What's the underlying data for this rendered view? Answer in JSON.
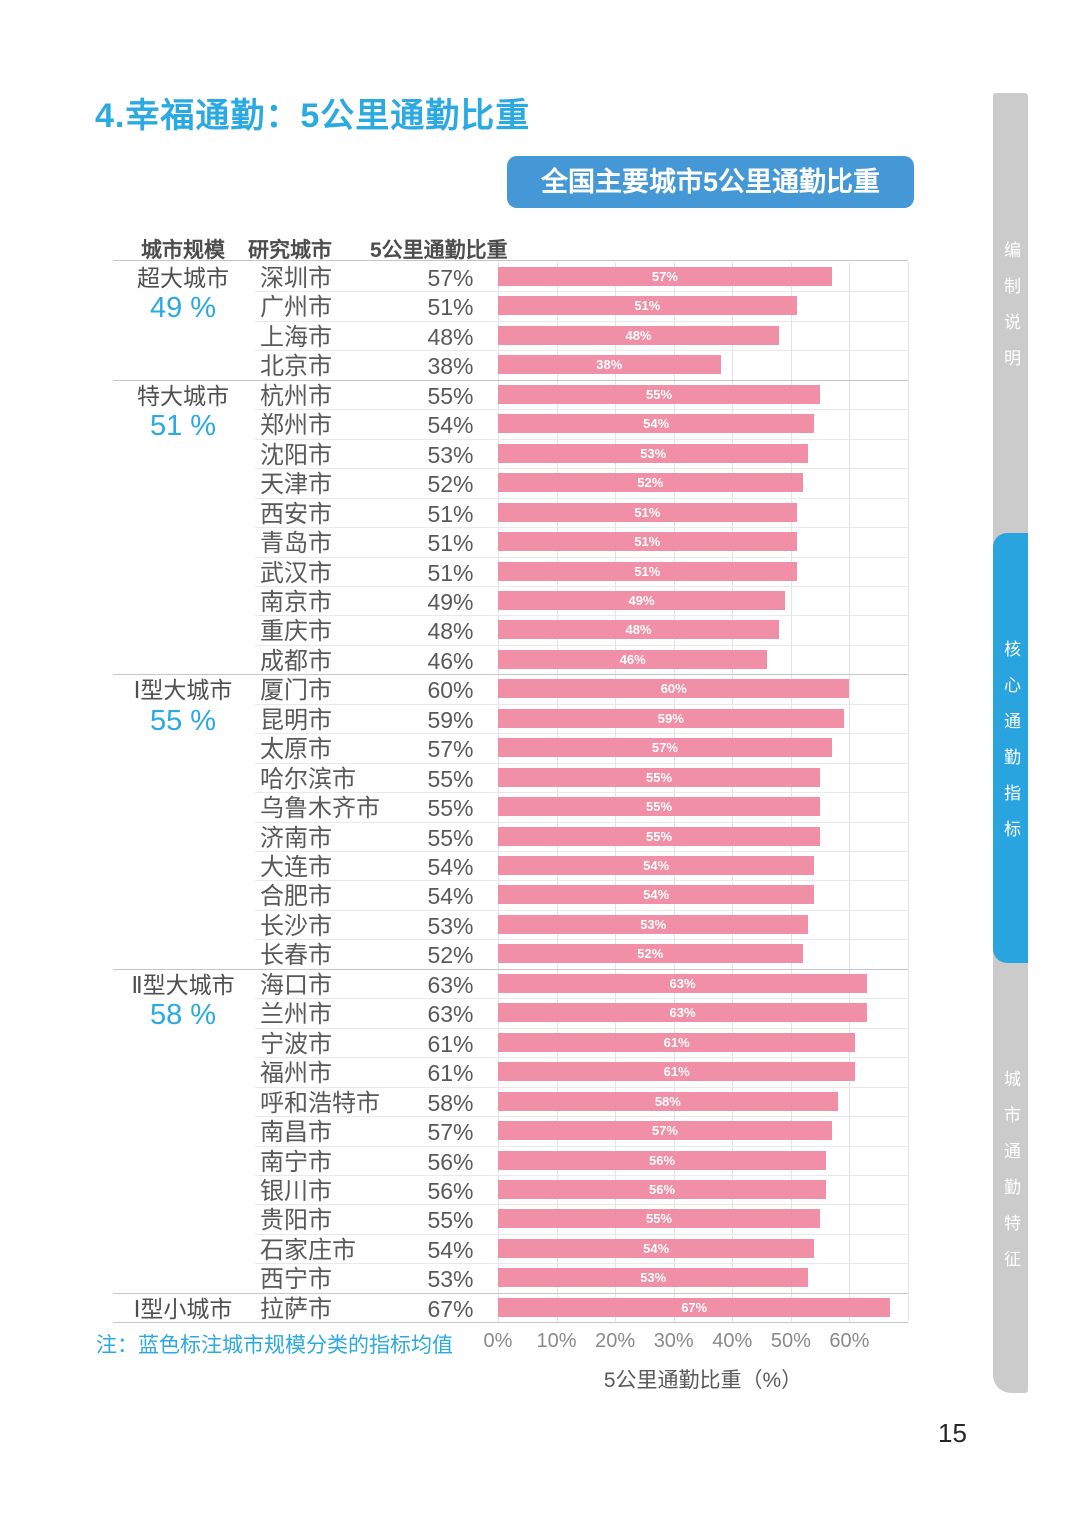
{
  "page": {
    "title": "4.幸福通勤：5公里通勤比重",
    "banner": "全国主要城市5公里通勤比重",
    "note": "注：蓝色标注城市规模分类的指标均值",
    "page_number": "15",
    "columns": [
      "城市规模",
      "研究城市",
      "5公里通勤比重"
    ]
  },
  "sidebar": {
    "items": [
      {
        "label": "编制说明",
        "active": false
      },
      {
        "label": "核心通勤指标",
        "active": true
      },
      {
        "label": "城市通勤特征",
        "active": false
      }
    ]
  },
  "colors": {
    "accent_blue": "#2BA9E1",
    "banner_blue": "#4498D5",
    "bar_pink": "#F08FA6",
    "rail_gray": "#CBCBCB",
    "rail_blue": "#29A4DF"
  },
  "chart_data": {
    "type": "bar",
    "orientation": "horizontal",
    "title": "全国主要城市5公里通勤比重",
    "xlabel": "5公里通勤比重（%）",
    "xlim": [
      0,
      70
    ],
    "x_tick_labels": [
      "0%",
      "10%",
      "20%",
      "30%",
      "40%",
      "50%",
      "60%"
    ],
    "grid": true,
    "bar_value_labels": "percent shown in white inside each bar",
    "groups": [
      {
        "scale": "超大城市",
        "average": "49 %",
        "cities": [
          {
            "name": "深圳市",
            "value": 57
          },
          {
            "name": "广州市",
            "value": 51
          },
          {
            "name": "上海市",
            "value": 48
          },
          {
            "name": "北京市",
            "value": 38
          }
        ]
      },
      {
        "scale": "特大城市",
        "average": "51 %",
        "cities": [
          {
            "name": "杭州市",
            "value": 55
          },
          {
            "name": "郑州市",
            "value": 54
          },
          {
            "name": "沈阳市",
            "value": 53
          },
          {
            "name": "天津市",
            "value": 52
          },
          {
            "name": "西安市",
            "value": 51
          },
          {
            "name": "青岛市",
            "value": 51
          },
          {
            "name": "武汉市",
            "value": 51
          },
          {
            "name": "南京市",
            "value": 49
          },
          {
            "name": "重庆市",
            "value": 48
          },
          {
            "name": "成都市",
            "value": 46
          }
        ]
      },
      {
        "scale": "Ⅰ型大城市",
        "average": "55 %",
        "cities": [
          {
            "name": "厦门市",
            "value": 60
          },
          {
            "name": "昆明市",
            "value": 59
          },
          {
            "name": "太原市",
            "value": 57
          },
          {
            "name": "哈尔滨市",
            "value": 55
          },
          {
            "name": "乌鲁木齐市",
            "value": 55
          },
          {
            "name": "济南市",
            "value": 55
          },
          {
            "name": "大连市",
            "value": 54
          },
          {
            "name": "合肥市",
            "value": 54
          },
          {
            "name": "长沙市",
            "value": 53
          },
          {
            "name": "长春市",
            "value": 52
          }
        ]
      },
      {
        "scale": "Ⅱ型大城市",
        "average": "58 %",
        "cities": [
          {
            "name": "海口市",
            "value": 63
          },
          {
            "name": "兰州市",
            "value": 63
          },
          {
            "name": "宁波市",
            "value": 61
          },
          {
            "name": "福州市",
            "value": 61
          },
          {
            "name": "呼和浩特市",
            "value": 58
          },
          {
            "name": "南昌市",
            "value": 57
          },
          {
            "name": "南宁市",
            "value": 56
          },
          {
            "name": "银川市",
            "value": 56
          },
          {
            "name": "贵阳市",
            "value": 55
          },
          {
            "name": "石家庄市",
            "value": 54
          },
          {
            "name": "西宁市",
            "value": 53
          }
        ]
      },
      {
        "scale": "Ⅰ型小城市",
        "average": null,
        "cities": [
          {
            "name": "拉萨市",
            "value": 67
          }
        ]
      }
    ]
  }
}
